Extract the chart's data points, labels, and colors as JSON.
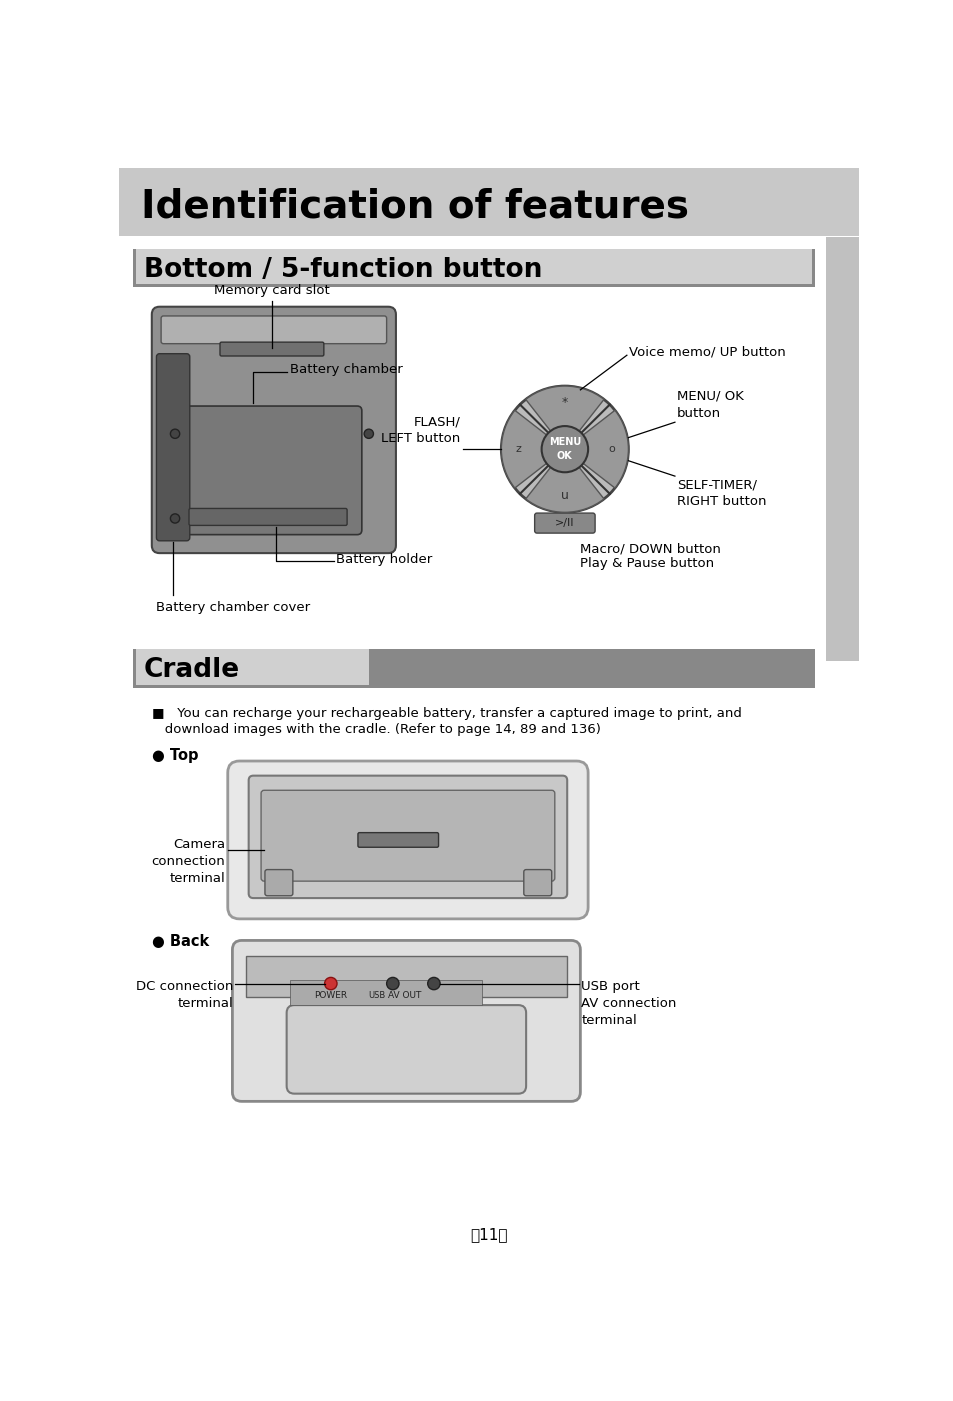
{
  "page_bg": "#ffffff",
  "header_bg": "#c8c8c8",
  "header_title": "Identification of features",
  "section1_title": "Bottom / 5-function button",
  "section2_title": "Cradle",
  "cradle_note_line1": "   You can recharge your rechargeable battery, transfer a captured image to print, and",
  "cradle_note_line2": "   download images with the cradle. (Refer to page 14, 89 and 136)",
  "top_label": "● Top",
  "back_label": "● Back",
  "label_mem": "Memory card slot",
  "label_batt_ch": "Battery chamber",
  "label_batt_hold": "Battery holder",
  "label_batt_cover": "Battery chamber cover",
  "label_voice": "Voice memo/ UP button",
  "label_menu": "MENU/ OK\nbutton",
  "label_self": "SELF-TIMER/\nRIGHT button",
  "label_flash": "FLASH/\nLEFT button",
  "label_macro": "Macro/ DOWN button",
  "label_play": "Play & Pause button",
  "label_cam_terminal": "Camera\nconnection\nterminal",
  "label_dc": "DC connection\nterminal",
  "label_usb": "USB port\nAV connection\nterminal",
  "page_number": "〈11〉",
  "menu_text1": "MENU",
  "menu_text2": "OK",
  "power_label": "POWER",
  "av_out_label": "AV OUT",
  "usb_icon": "USB"
}
